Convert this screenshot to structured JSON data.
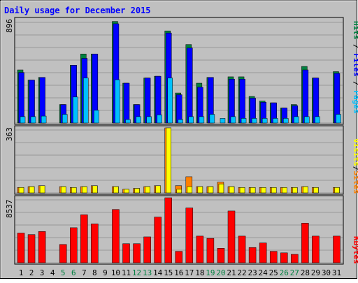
{
  "chart_data": {
    "type": "bar",
    "title": "Daily usage for December 2015",
    "categories": [
      "1",
      "2",
      "3",
      "4",
      "5",
      "6",
      "7",
      "8",
      "9",
      "10",
      "11",
      "12",
      "13",
      "14",
      "15",
      "16",
      "17",
      "18",
      "19",
      "20",
      "21",
      "22",
      "23",
      "24",
      "25",
      "26",
      "27",
      "28",
      "29",
      "30",
      "31"
    ],
    "weekend_days": [
      "5",
      "6",
      "12",
      "13",
      "19",
      "20",
      "26",
      "27"
    ],
    "panels": [
      {
        "name": "top",
        "ymax": 896,
        "ymax_label": "896",
        "legend": [
          "Pages",
          "Files",
          "Hits"
        ],
        "series": [
          {
            "name": "Hits",
            "color": "#008040",
            "values": [
              460,
              372,
              395,
              0,
              160,
              500,
              598,
              598,
              0,
              880,
              345,
              160,
              390,
              405,
              798,
              260,
              680,
              345,
              395,
              0,
              400,
              400,
              230,
              190,
              175,
              130,
              160,
              490,
              390,
              0,
              445
            ]
          },
          {
            "name": "Files",
            "color": "#0000ff",
            "values": [
              438,
              372,
              395,
              0,
              160,
              500,
              560,
              598,
              0,
              860,
              345,
              160,
              390,
              405,
              780,
              245,
              650,
              310,
              395,
              0,
              380,
              380,
              215,
              180,
              175,
              130,
              150,
              460,
              390,
              0,
              430
            ]
          },
          {
            "name": "Pages",
            "color": "#00c0ff",
            "values": [
              55,
              55,
              60,
              0,
              75,
              225,
              390,
              110,
              0,
              375,
              30,
              55,
              55,
              70,
              390,
              30,
              55,
              55,
              75,
              40,
              55,
              40,
              40,
              40,
              40,
              40,
              55,
              55,
              55,
              0,
              75
            ]
          }
        ]
      },
      {
        "name": "middle",
        "ymax": 363,
        "ymax_label": "363",
        "legend": [
          "Sites",
          "/",
          "Visits"
        ],
        "series": [
          {
            "name": "Visits",
            "color": "#ffff00",
            "values": [
              30,
              35,
              40,
              0,
              35,
              30,
              35,
              40,
              0,
              35,
              20,
              25,
              35,
              40,
              363,
              20,
              35,
              35,
              35,
              50,
              35,
              30,
              30,
              30,
              30,
              30,
              30,
              35,
              30,
              0,
              30
            ]
          },
          {
            "name": "Sites",
            "color": "#ff8000",
            "values": [
              30,
              35,
              40,
              0,
              35,
              30,
              35,
              40,
              0,
              35,
              20,
              25,
              35,
              40,
              363,
              40,
              90,
              35,
              35,
              60,
              35,
              30,
              30,
              30,
              30,
              30,
              30,
              35,
              30,
              0,
              30
            ]
          }
        ]
      },
      {
        "name": "bottom",
        "ymax": 8537,
        "ymax_label": "8537",
        "legend": [
          "KBytes"
        ],
        "series": [
          {
            "name": "KBytes",
            "color": "#ff0000",
            "values": [
              3900,
              3700,
              4100,
              0,
              2400,
              4600,
              6300,
              5100,
              0,
              7000,
              2500,
              2500,
              3400,
              6000,
              8537,
              1500,
              7200,
              3500,
              3200,
              1900,
              6800,
              3500,
              2000,
              2600,
              1500,
              1300,
              1100,
              5200,
              3500,
              0,
              3500
            ]
          }
        ]
      }
    ]
  }
}
